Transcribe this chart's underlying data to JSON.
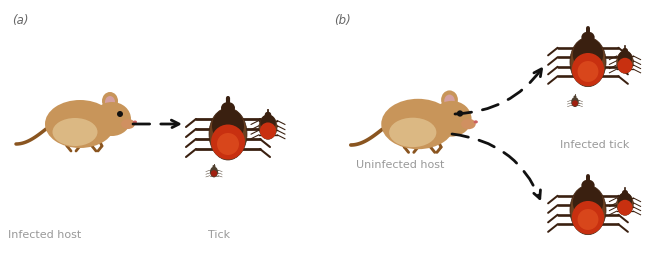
{
  "bg_color": "#ffffff",
  "fig_width": 6.64,
  "fig_height": 2.62,
  "dpi": 100,
  "panel_a_label": "(a)",
  "panel_b_label": "(b)",
  "label_fontsize": 8.5,
  "label_color": "#666666",
  "text_fontsize": 8,
  "text_color": "#999999",
  "infected_host_text": "Infected host",
  "tick_text": "Tick",
  "uninfected_host_text": "Uninfected host",
  "infected_tick_text": "Infected tick",
  "arrow_color": "#111111",
  "mouse_fur_color": "#c8955a",
  "mouse_belly_color": "#e8d0a0",
  "mouse_ear_color": "#d4a0a0",
  "mouse_dark": "#8a5520",
  "tick_dark": "#3a2010",
  "tick_med": "#6b4020",
  "tick_red": "#c83010",
  "tick_orange": "#e05020",
  "nymph_dark": "#504030",
  "nymph_red": "#a02010"
}
